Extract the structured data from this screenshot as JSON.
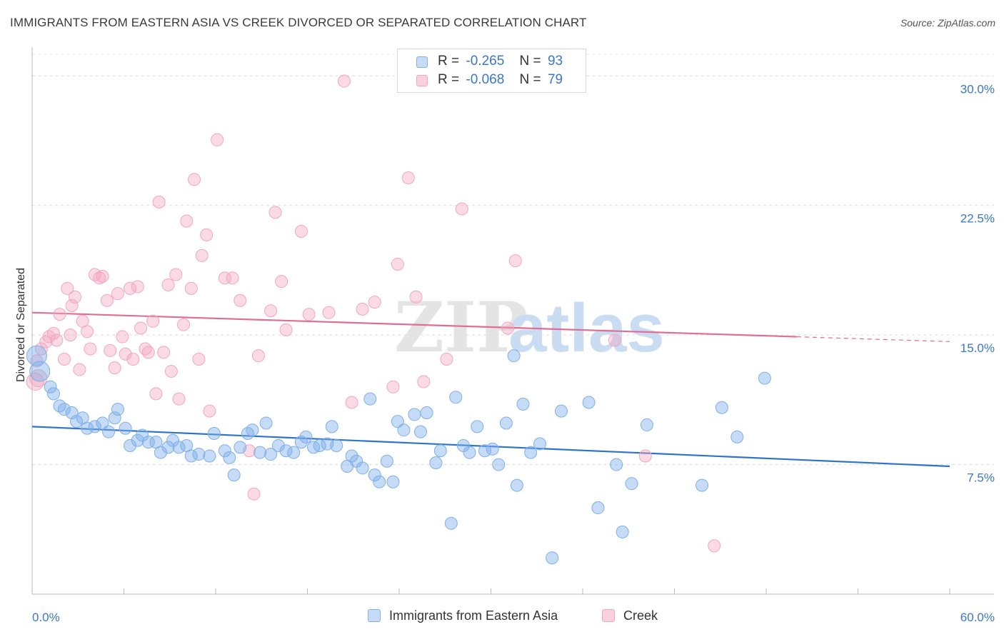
{
  "header": {
    "title": "IMMIGRANTS FROM EASTERN ASIA VS CREEK DIVORCED OR SEPARATED CORRELATION CHART",
    "source": "Source: ZipAtlas.com"
  },
  "legend": {
    "rows": [
      {
        "r_label": "R =",
        "r_value": "-0.265",
        "n_label": "N =",
        "n_value": "93",
        "color": "#7fb0ea"
      },
      {
        "r_label": "R =",
        "r_value": "-0.068",
        "n_label": "N =",
        "n_value": "79",
        "color": "#f3a6bf"
      }
    ]
  },
  "watermark": {
    "zip": "ZIP",
    "atlas": "atlas"
  },
  "chart_data": {
    "type": "scatter",
    "ylabel": "Divorced or Separated",
    "xlim": [
      0,
      60
    ],
    "ylim": [
      0,
      31.5
    ],
    "y_ticks": [
      7.5,
      15.0,
      22.5,
      30.0
    ],
    "y_tick_labels": [
      "7.5%",
      "15.0%",
      "22.5%",
      "30.0%"
    ],
    "x_tick_labels": [
      "0.0%",
      "60.0%"
    ],
    "grid": "horizontal dashed",
    "legend_position": "top-center",
    "colors": {
      "blue": "#7fb0ea",
      "blue_line": "#2f74cc",
      "pink": "#f3a6bf",
      "pink_line": "#e06d95"
    },
    "series": [
      {
        "name": "Immigrants from Eastern Asia",
        "trend": {
          "x0": 0,
          "y0": 9.7,
          "x1": 60,
          "y1": 7.4
        },
        "points": [
          [
            0.3,
            13.8
          ],
          [
            0.5,
            12.9
          ],
          [
            1.2,
            12.0
          ],
          [
            1.4,
            11.6
          ],
          [
            1.8,
            10.9
          ],
          [
            2.1,
            10.7
          ],
          [
            2.6,
            10.5
          ],
          [
            2.9,
            10.0
          ],
          [
            3.3,
            10.2
          ],
          [
            3.6,
            9.6
          ],
          [
            4.1,
            9.7
          ],
          [
            4.6,
            9.9
          ],
          [
            5.0,
            9.4
          ],
          [
            5.4,
            10.2
          ],
          [
            5.6,
            10.7
          ],
          [
            6.1,
            9.6
          ],
          [
            6.4,
            8.6
          ],
          [
            6.9,
            8.9
          ],
          [
            7.2,
            9.2
          ],
          [
            7.6,
            8.8
          ],
          [
            8.1,
            8.8
          ],
          [
            8.4,
            8.2
          ],
          [
            8.9,
            8.5
          ],
          [
            9.2,
            8.9
          ],
          [
            9.6,
            8.5
          ],
          [
            10.1,
            8.6
          ],
          [
            10.4,
            8.0
          ],
          [
            10.9,
            8.1
          ],
          [
            11.6,
            8.0
          ],
          [
            11.9,
            9.3
          ],
          [
            12.6,
            8.3
          ],
          [
            12.9,
            7.9
          ],
          [
            13.2,
            6.9
          ],
          [
            13.6,
            8.5
          ],
          [
            14.1,
            9.3
          ],
          [
            14.4,
            9.5
          ],
          [
            14.9,
            8.2
          ],
          [
            15.3,
            9.9
          ],
          [
            15.6,
            8.1
          ],
          [
            16.1,
            8.6
          ],
          [
            16.6,
            8.3
          ],
          [
            17.1,
            8.2
          ],
          [
            17.6,
            8.8
          ],
          [
            17.9,
            9.1
          ],
          [
            18.4,
            8.5
          ],
          [
            18.8,
            8.6
          ],
          [
            19.3,
            8.7
          ],
          [
            19.6,
            9.7
          ],
          [
            19.9,
            8.6
          ],
          [
            20.6,
            7.4
          ],
          [
            20.9,
            8.0
          ],
          [
            21.2,
            7.7
          ],
          [
            21.6,
            7.3
          ],
          [
            22.1,
            11.3
          ],
          [
            22.4,
            6.9
          ],
          [
            22.7,
            6.5
          ],
          [
            23.2,
            7.7
          ],
          [
            23.6,
            6.5
          ],
          [
            23.9,
            10.0
          ],
          [
            24.3,
            9.5
          ],
          [
            25.0,
            10.4
          ],
          [
            25.4,
            9.4
          ],
          [
            25.8,
            10.5
          ],
          [
            26.4,
            7.6
          ],
          [
            26.7,
            8.3
          ],
          [
            27.4,
            4.1
          ],
          [
            27.7,
            11.4
          ],
          [
            28.2,
            8.6
          ],
          [
            28.6,
            8.2
          ],
          [
            29.1,
            9.7
          ],
          [
            29.6,
            8.3
          ],
          [
            30.1,
            8.4
          ],
          [
            30.5,
            7.5
          ],
          [
            31.0,
            9.9
          ],
          [
            31.7,
            6.3
          ],
          [
            32.1,
            11.0
          ],
          [
            32.6,
            8.2
          ],
          [
            33.2,
            8.7
          ],
          [
            34.0,
            2.1
          ],
          [
            34.6,
            10.6
          ],
          [
            36.4,
            11.1
          ],
          [
            37.0,
            5.0
          ],
          [
            38.2,
            7.5
          ],
          [
            38.6,
            3.6
          ],
          [
            39.2,
            6.4
          ],
          [
            40.2,
            9.8
          ],
          [
            43.8,
            6.3
          ],
          [
            45.1,
            10.8
          ],
          [
            46.1,
            9.1
          ],
          [
            47.9,
            12.5
          ],
          [
            31.5,
            13.8
          ]
        ]
      },
      {
        "name": "Creek",
        "trend": {
          "x0": 0,
          "y0": 16.3,
          "x1": 50,
          "y1": 14.9,
          "dash_to": 60
        },
        "points": [
          [
            0.2,
            12.3
          ],
          [
            0.4,
            12.5
          ],
          [
            0.6,
            14.2
          ],
          [
            0.9,
            14.6
          ],
          [
            1.1,
            14.9
          ],
          [
            1.4,
            15.1
          ],
          [
            1.6,
            14.7
          ],
          [
            1.8,
            16.2
          ],
          [
            2.1,
            13.6
          ],
          [
            2.3,
            17.7
          ],
          [
            2.6,
            16.7
          ],
          [
            2.8,
            17.2
          ],
          [
            3.1,
            13.0
          ],
          [
            3.3,
            15.8
          ],
          [
            3.6,
            15.2
          ],
          [
            3.8,
            14.2
          ],
          [
            4.1,
            18.5
          ],
          [
            4.4,
            18.3
          ],
          [
            4.6,
            18.4
          ],
          [
            4.9,
            17.0
          ],
          [
            5.1,
            14.1
          ],
          [
            5.4,
            13.1
          ],
          [
            5.6,
            17.4
          ],
          [
            5.9,
            14.9
          ],
          [
            6.1,
            13.9
          ],
          [
            6.4,
            17.7
          ],
          [
            6.6,
            13.6
          ],
          [
            6.9,
            17.8
          ],
          [
            7.1,
            15.4
          ],
          [
            7.4,
            14.2
          ],
          [
            7.6,
            14.0
          ],
          [
            7.9,
            15.8
          ],
          [
            8.1,
            11.6
          ],
          [
            8.3,
            22.7
          ],
          [
            8.6,
            14.0
          ],
          [
            8.9,
            17.9
          ],
          [
            9.1,
            12.9
          ],
          [
            9.4,
            18.5
          ],
          [
            9.6,
            11.3
          ],
          [
            9.9,
            15.6
          ],
          [
            10.1,
            21.6
          ],
          [
            10.4,
            17.7
          ],
          [
            10.6,
            24.0
          ],
          [
            10.9,
            13.6
          ],
          [
            11.1,
            19.6
          ],
          [
            11.4,
            20.8
          ],
          [
            11.6,
            10.6
          ],
          [
            12.1,
            26.3
          ],
          [
            12.6,
            18.3
          ],
          [
            13.1,
            18.3
          ],
          [
            13.6,
            17.0
          ],
          [
            14.2,
            8.3
          ],
          [
            14.5,
            5.8
          ],
          [
            14.8,
            13.8
          ],
          [
            15.6,
            16.4
          ],
          [
            15.9,
            22.1
          ],
          [
            16.3,
            18.1
          ],
          [
            16.6,
            15.3
          ],
          [
            17.6,
            21.0
          ],
          [
            18.1,
            16.2
          ],
          [
            19.4,
            16.3
          ],
          [
            20.4,
            29.7
          ],
          [
            20.9,
            11.1
          ],
          [
            21.6,
            16.5
          ],
          [
            22.4,
            16.9
          ],
          [
            23.6,
            12.0
          ],
          [
            23.9,
            19.1
          ],
          [
            24.6,
            24.1
          ],
          [
            25.1,
            17.2
          ],
          [
            25.6,
            12.3
          ],
          [
            27.1,
            13.6
          ],
          [
            28.1,
            22.3
          ],
          [
            31.6,
            19.3
          ],
          [
            31.1,
            15.4
          ],
          [
            38.1,
            14.7
          ],
          [
            40.1,
            8.0
          ],
          [
            44.6,
            2.8
          ],
          [
            0.3,
            13.5
          ],
          [
            2.5,
            15.0
          ]
        ]
      }
    ]
  },
  "bottom_legend": [
    {
      "label": "Immigrants from Eastern Asia",
      "color": "#7fb0ea"
    },
    {
      "label": "Creek",
      "color": "#f3a6bf"
    }
  ]
}
